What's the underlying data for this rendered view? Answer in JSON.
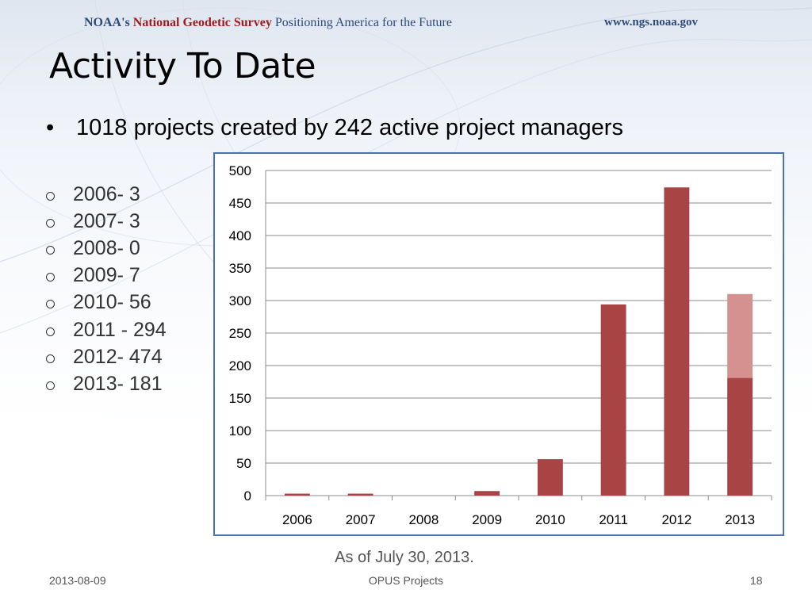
{
  "header": {
    "agency": "NOAA's",
    "survey": "National Geodetic Survey",
    "tagline": "Positioning America for the Future",
    "website": "www.ngs.noaa.gov"
  },
  "slide": {
    "title": "Activity To Date",
    "bullet": "1018 projects created by 242 active project managers",
    "year_items": [
      "2006- 3",
      "2007- 3",
      "2008- 0",
      "2009- 7",
      "2010- 56",
      "2011 - 294",
      "2012- 474",
      "2013- 181"
    ],
    "caption": "As of July 30, 2013."
  },
  "footer": {
    "date": "2013-08-09",
    "center": "OPUS Projects",
    "page": "18"
  },
  "colors": {
    "bar": "#a84444",
    "bar_projected": "#d59090",
    "grid": "#8c8c8c",
    "frame": "#4a73b3"
  },
  "chart_data": {
    "type": "bar",
    "stacked": true,
    "categories": [
      "2006",
      "2007",
      "2008",
      "2009",
      "2010",
      "2011",
      "2012",
      "2013"
    ],
    "series": [
      {
        "values": [
          3,
          3,
          0,
          7,
          56,
          294,
          474,
          181
        ],
        "color": "#a84444"
      },
      {
        "values": [
          0,
          0,
          0,
          0,
          0,
          0,
          0,
          129
        ],
        "color": "#d59090"
      }
    ],
    "ylim": [
      0,
      500
    ],
    "yticks": [
      0,
      50,
      100,
      150,
      200,
      250,
      300,
      350,
      400,
      450,
      500
    ],
    "grid": true,
    "legend": "none",
    "title": "",
    "xlabel": "",
    "ylabel": ""
  }
}
